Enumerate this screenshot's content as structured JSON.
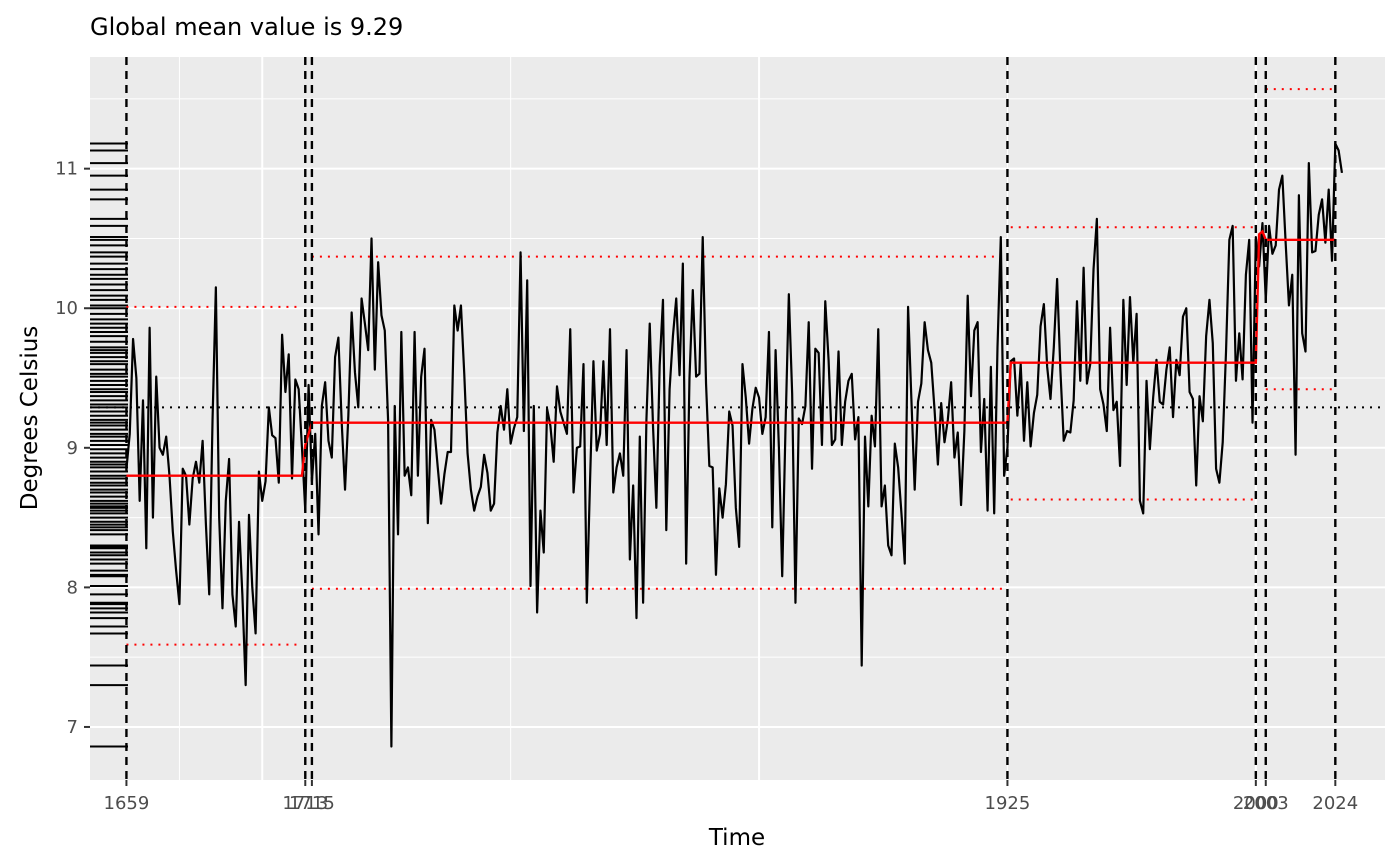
{
  "chart_data": {
    "type": "line",
    "title": "Global mean value is 9.29",
    "xlabel": "Time",
    "ylabel": "Degrees Celsius",
    "xlim": [
      1648,
      2039
    ],
    "ylim": [
      6.62,
      11.8
    ],
    "y_ticks": [
      7,
      8,
      9,
      10,
      11
    ],
    "x_ticks": [
      1659,
      1713,
      1715,
      1925,
      2000,
      2003,
      2024
    ],
    "x_tick_labels": [
      "1659",
      "1713",
      "1715",
      "1925",
      "2000",
      "2003",
      "2024"
    ],
    "grid": true,
    "global_mean": 9.29,
    "changepoints": [
      1659,
      1713,
      1715,
      1925,
      2000,
      2003,
      2024
    ],
    "segments": [
      {
        "start": 1659,
        "end": 1712,
        "mean": 8.8,
        "lower": 7.59,
        "upper": 10.01
      },
      {
        "start": 1715,
        "end": 1925,
        "mean": 9.18,
        "lower": 7.99,
        "upper": 10.37
      },
      {
        "start": 1926,
        "end": 2000,
        "mean": 9.61,
        "lower": 8.63,
        "upper": 10.58
      },
      {
        "start": 2003,
        "end": 2024,
        "mean": 10.49,
        "lower": 9.42,
        "upper": 11.57
      }
    ],
    "fitted_line": [
      {
        "x": 1659,
        "y": 8.8
      },
      {
        "x": 1712,
        "y": 8.8
      },
      {
        "x": 1713,
        "y": 9.02
      },
      {
        "x": 1714,
        "y": 9.1
      },
      {
        "x": 1715,
        "y": 9.18
      },
      {
        "x": 1925,
        "y": 9.18
      },
      {
        "x": 1926,
        "y": 9.61
      },
      {
        "x": 2000,
        "y": 9.61
      },
      {
        "x": 2001,
        "y": 10.53
      },
      {
        "x": 2002,
        "y": 10.55
      },
      {
        "x": 2003,
        "y": 10.49
      },
      {
        "x": 2024,
        "y": 10.49
      }
    ],
    "series": [
      {
        "x_start": 1659,
        "x_step": 1,
        "values": [
          8.85,
          9.1,
          9.78,
          9.5,
          8.62,
          9.34,
          8.28,
          9.86,
          8.5,
          9.51,
          9.0,
          8.95,
          9.08,
          8.8,
          8.4,
          8.12,
          7.88,
          8.85,
          8.8,
          8.45,
          8.78,
          8.9,
          8.75,
          9.05,
          8.45,
          7.95,
          9.2,
          10.15,
          8.5,
          7.85,
          8.62,
          8.92,
          7.95,
          7.72,
          8.47,
          7.95,
          7.3,
          8.52,
          8.0,
          7.67,
          8.83,
          8.62,
          8.76,
          9.29,
          9.09,
          9.07,
          8.75,
          9.81,
          9.4,
          9.67,
          8.78,
          9.49,
          9.42,
          9.0,
          8.55,
          9.45,
          8.76,
          9.1,
          8.38,
          9.3,
          9.47,
          9.05,
          8.93,
          9.65,
          9.79,
          9.18,
          8.7,
          9.23,
          9.97,
          9.54,
          9.29,
          10.07,
          9.89,
          9.7,
          10.5,
          9.56,
          10.33,
          9.95,
          9.84,
          9.2,
          6.86,
          9.3,
          8.38,
          9.83,
          8.8,
          8.86,
          8.66,
          9.83,
          8.8,
          9.51,
          9.71,
          8.46,
          9.2,
          9.13,
          8.86,
          8.6,
          8.81,
          8.97,
          8.97,
          10.02,
          9.84,
          10.02,
          9.53,
          8.96,
          8.7,
          8.55,
          8.65,
          8.72,
          8.95,
          8.82,
          8.55,
          8.6,
          9.11,
          9.3,
          9.13,
          9.42,
          9.03,
          9.14,
          9.22,
          10.4,
          9.12,
          10.2,
          8.01,
          9.3,
          7.82,
          8.55,
          8.25,
          9.28,
          9.16,
          8.9,
          9.44,
          9.26,
          9.18,
          9.1,
          9.85,
          8.68,
          9.0,
          9.01,
          9.6,
          7.89,
          8.78,
          9.62,
          8.98,
          9.1,
          9.62,
          9.02,
          9.85,
          8.68,
          8.86,
          8.96,
          8.8,
          9.7,
          8.2,
          8.73,
          7.78,
          9.08,
          7.89,
          9.2,
          9.89,
          9.15,
          8.57,
          9.59,
          10.06,
          8.41,
          9.42,
          9.8,
          10.07,
          9.52,
          10.32,
          8.17,
          9.5,
          10.13,
          9.51,
          9.53,
          10.51,
          9.46,
          8.87,
          8.86,
          8.09,
          8.71,
          8.5,
          8.74,
          9.26,
          9.16,
          8.57,
          8.29,
          9.6,
          9.36,
          9.03,
          9.28,
          9.43,
          9.36,
          9.1,
          9.22,
          9.83,
          8.43,
          9.7,
          9.0,
          8.08,
          9.15,
          10.1,
          9.39,
          7.89,
          9.21,
          9.17,
          9.3,
          9.9,
          8.85,
          9.71,
          9.68,
          9.02,
          10.05,
          9.63,
          9.02,
          9.06,
          9.69,
          9.02,
          9.33,
          9.48,
          9.53,
          9.06,
          9.22,
          7.44,
          9.08,
          8.58,
          9.23,
          9.01,
          9.85,
          8.58,
          8.73,
          8.3,
          8.23,
          9.03,
          8.86,
          8.53,
          8.17,
          10.01,
          9.35,
          8.7,
          9.33,
          9.46,
          9.9,
          9.7,
          9.61,
          9.27,
          8.88,
          9.32,
          9.04,
          9.2,
          9.47,
          8.93,
          9.11,
          8.59,
          9.12,
          10.09,
          9.37,
          9.84,
          9.9,
          8.97,
          9.35,
          8.55,
          9.58,
          8.53,
          9.72,
          10.51,
          8.8,
          9.0,
          9.62,
          9.64,
          9.23,
          9.6,
          9.05,
          9.47,
          9.01,
          9.25,
          9.38,
          9.87,
          10.03,
          9.58,
          9.35,
          9.72,
          10.21,
          9.55,
          9.05,
          9.12,
          9.11,
          9.34,
          10.05,
          9.48,
          10.29,
          9.46,
          9.6,
          10.28,
          10.64,
          9.42,
          9.31,
          9.12,
          9.86,
          9.27,
          9.33,
          8.87,
          10.06,
          9.45,
          10.08,
          9.61,
          9.96,
          8.62,
          8.53,
          9.48,
          8.99,
          9.36,
          9.63,
          9.33,
          9.31,
          9.56,
          9.72,
          9.22,
          9.63,
          9.52,
          9.94,
          10.0,
          9.4,
          9.35,
          8.73,
          9.37,
          9.19,
          9.8,
          10.06,
          9.75,
          8.85,
          8.75,
          9.04,
          9.69,
          10.49,
          10.59,
          9.48,
          9.82,
          9.49,
          10.24,
          10.49,
          9.18,
          10.51,
          10.3,
          10.61,
          10.06,
          10.59,
          10.39,
          10.45,
          10.85,
          10.95,
          10.47,
          10.02,
          10.24,
          8.95,
          10.81,
          9.82,
          9.69,
          11.04,
          10.4,
          10.41,
          10.67,
          10.78,
          10.47,
          10.85,
          10.34,
          11.18,
          11.13,
          10.97
        ]
      }
    ],
    "rug_y": [
      6.86,
      7.3,
      7.44,
      7.67,
      7.72,
      7.78,
      7.82,
      7.85,
      7.88,
      7.89,
      7.95,
      8.01,
      8.08,
      8.09,
      8.12,
      8.17,
      8.2,
      8.23,
      8.25,
      8.28,
      8.29,
      8.3,
      8.38,
      8.41,
      8.43,
      8.45,
      8.47,
      8.5,
      8.53,
      8.55,
      8.57,
      8.58,
      8.6,
      8.62,
      8.65,
      8.68,
      8.7,
      8.73,
      8.75,
      8.78,
      8.8,
      8.83,
      8.86,
      8.88,
      8.9,
      8.93,
      8.96,
      8.99,
      9.02,
      9.05,
      9.08,
      9.1,
      9.13,
      9.16,
      9.18,
      9.2,
      9.23,
      9.26,
      9.29,
      9.31,
      9.34,
      9.37,
      9.4,
      9.42,
      9.45,
      9.48,
      9.51,
      9.53,
      9.56,
      9.6,
      9.62,
      9.65,
      9.68,
      9.7,
      9.72,
      9.76,
      9.8,
      9.83,
      9.86,
      9.89,
      9.92,
      9.96,
      10.0,
      10.02,
      10.06,
      10.09,
      10.13,
      10.17,
      10.21,
      10.24,
      10.28,
      10.32,
      10.37,
      10.4,
      10.45,
      10.49,
      10.51,
      10.59,
      10.64,
      10.78,
      10.85,
      10.95,
      11.04,
      11.13,
      11.18
    ],
    "colors": {
      "panel_background": "#ebebeb",
      "grid": "#ffffff",
      "series": "#000000",
      "fitted": "#ff0000",
      "interval": "#ff0000",
      "changepoint": "#000000",
      "global_mean": "#000000"
    }
  }
}
